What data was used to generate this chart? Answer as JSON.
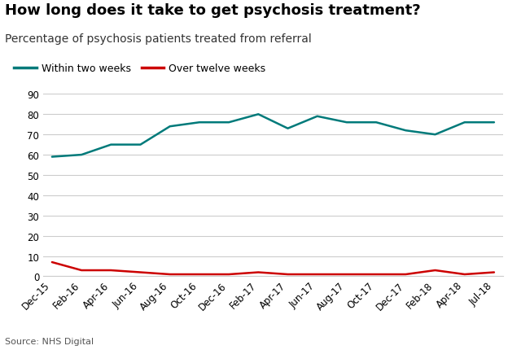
{
  "title": "How long does it take to get psychosis treatment?",
  "subtitle": "Percentage of psychosis patients treated from referral",
  "source": "Source: NHS Digital",
  "x_labels": [
    "Dec-15",
    "Feb-16",
    "Apr-16",
    "Jun-16",
    "Aug-16",
    "Oct-16",
    "Dec-16",
    "Feb-17",
    "Apr-17",
    "Jun-17",
    "Aug-17",
    "Oct-17",
    "Dec-17",
    "Feb-18",
    "Apr-18",
    "Jul-18"
  ],
  "within_two_weeks": [
    59,
    60,
    65,
    65,
    74,
    76,
    76,
    80,
    73,
    79,
    76,
    76,
    72,
    70,
    76,
    76
  ],
  "over_twelve_weeks": [
    7,
    3,
    3,
    2,
    1,
    1,
    1,
    2,
    1,
    1,
    1,
    1,
    1,
    3,
    1,
    2
  ],
  "color_teal": "#007a7a",
  "color_red": "#cc0000",
  "ylim": [
    0,
    90
  ],
  "yticks": [
    0,
    10,
    20,
    30,
    40,
    50,
    60,
    70,
    80,
    90
  ],
  "legend_label_teal": "Within two weeks",
  "legend_label_red": "Over twelve weeks",
  "bg_color": "#ffffff",
  "grid_color": "#cccccc",
  "title_fontsize": 13,
  "subtitle_fontsize": 10,
  "tick_fontsize": 8.5
}
